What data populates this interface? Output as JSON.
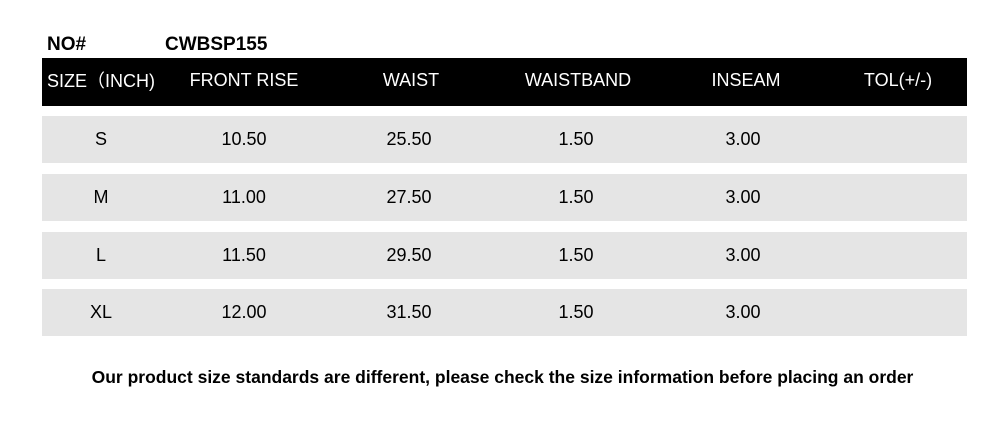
{
  "no_label": "NO#",
  "style_no": "CWBSP155",
  "headers": [
    "SIZE（INCH)",
    "FRONT RISE",
    "WAIST",
    "WAISTBAND",
    "INSEAM",
    "TOL(+/-)"
  ],
  "rows": [
    [
      "S",
      "10.50",
      "25.50",
      "1.50",
      "3.00",
      ""
    ],
    [
      "M",
      "11.00",
      "27.50",
      "1.50",
      "3.00",
      ""
    ],
    [
      "L",
      "11.50",
      "29.50",
      "1.50",
      "3.00",
      ""
    ],
    [
      "XL",
      "12.00",
      "31.50",
      "1.50",
      "3.00",
      ""
    ]
  ],
  "footer": "Our product size standards are different, please check the size information before placing an order"
}
